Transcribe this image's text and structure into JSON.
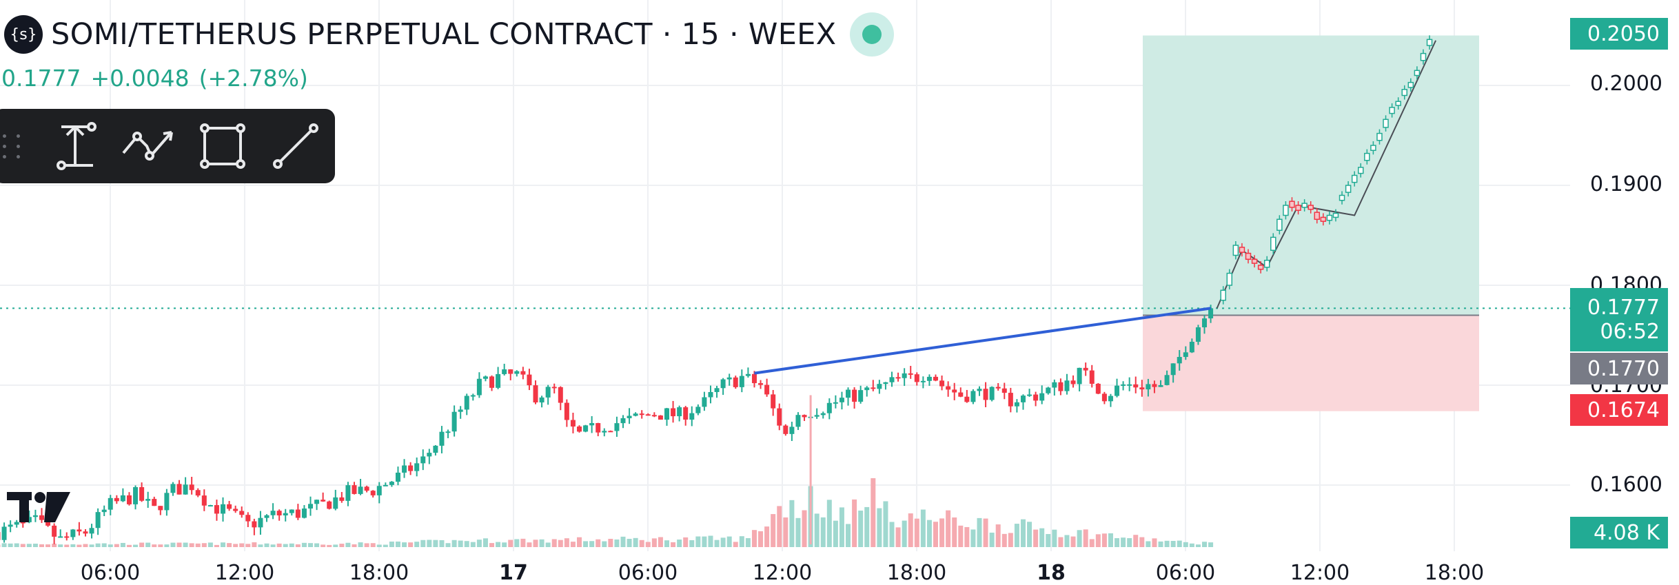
{
  "header": {
    "symbol_icon": "{s}",
    "title": "SOMI/TETHERUS PERPETUAL CONTRACT · 15 · WEEX",
    "last": "0.1777",
    "change": "+0.0048",
    "change_pct": "(+2.78%)"
  },
  "toolbar": {
    "tools": [
      "price-range-icon",
      "path-icon",
      "rectangle-icon",
      "trend-line-icon"
    ]
  },
  "price_axis": {
    "labels": [
      "0.2000",
      "0.1900",
      "0.1800",
      "0.1700",
      "0.1600"
    ],
    "bold_label": "0.2000"
  },
  "tags": {
    "target": "0.2050",
    "current_price": "0.1777",
    "countdown": "06:52",
    "entry": "0.1770",
    "stop": "0.1674",
    "volume": "4.08 K"
  },
  "time_axis": [
    "06:00",
    "12:00",
    "18:00",
    "17",
    "06:00",
    "12:00",
    "18:00",
    "18",
    "06:00",
    "12:00",
    "18:00"
  ],
  "colors": {
    "up": "#22ab94",
    "down": "#f23645",
    "trend_line": "#2f5fd6",
    "profit_zone": "#cfebe4",
    "loss_zone": "#fad7da",
    "current_tag": "#22ab94",
    "entry_tag": "#787b86",
    "stop_tag": "#f23645"
  },
  "chart_data": {
    "type": "candlestick",
    "symbol": "SOMI/TETHERUS PERPETUAL CONTRACT",
    "interval": "15",
    "exchange": "WEEX",
    "ylim": [
      0.1545,
      0.2065
    ],
    "x_ticks": [
      "06:00",
      "12:00",
      "18:00",
      "17",
      "06:00",
      "12:00",
      "18:00",
      "18",
      "06:00",
      "12:00",
      "18:00"
    ],
    "close_path": [
      [
        0,
        0.1553
      ],
      [
        6,
        0.1563
      ],
      [
        10,
        0.1545
      ],
      [
        14,
        0.1553
      ],
      [
        18,
        0.158
      ],
      [
        22,
        0.159
      ],
      [
        25,
        0.1575
      ],
      [
        28,
        0.1595
      ],
      [
        31,
        0.16
      ],
      [
        34,
        0.158
      ],
      [
        37,
        0.1572
      ],
      [
        40,
        0.156
      ],
      [
        44,
        0.157
      ],
      [
        48,
        0.1572
      ],
      [
        52,
        0.158
      ],
      [
        56,
        0.1592
      ],
      [
        60,
        0.1595
      ],
      [
        64,
        0.1608
      ],
      [
        68,
        0.1625
      ],
      [
        71,
        0.165
      ],
      [
        74,
        0.1675
      ],
      [
        77,
        0.17
      ],
      [
        80,
        0.1708
      ],
      [
        83,
        0.171
      ],
      [
        86,
        0.169
      ],
      [
        89,
        0.1695
      ],
      [
        91,
        0.166
      ],
      [
        93,
        0.165
      ],
      [
        97,
        0.166
      ],
      [
        101,
        0.1665
      ],
      [
        105,
        0.1672
      ],
      [
        109,
        0.167
      ],
      [
        113,
        0.1682
      ],
      [
        116,
        0.17
      ],
      [
        119,
        0.1708
      ],
      [
        122,
        0.17
      ],
      [
        124,
        0.1675
      ],
      [
        126,
        0.165
      ],
      [
        128,
        0.1672
      ],
      [
        132,
        0.1678
      ],
      [
        136,
        0.1688
      ],
      [
        140,
        0.1695
      ],
      [
        144,
        0.1705
      ],
      [
        147,
        0.1708
      ],
      [
        149,
        0.1715
      ],
      [
        151,
        0.17
      ],
      [
        154,
        0.169
      ],
      [
        158,
        0.1693
      ],
      [
        162,
        0.1685
      ],
      [
        166,
        0.169
      ],
      [
        170,
        0.17
      ],
      [
        173,
        0.1712
      ],
      [
        175,
        0.1705
      ],
      [
        177,
        0.169
      ],
      [
        180,
        0.17
      ],
      [
        184,
        0.17
      ],
      [
        186,
        0.1697
      ],
      [
        188,
        0.1715
      ],
      [
        190,
        0.174
      ],
      [
        192,
        0.176
      ],
      [
        194,
        0.1777
      ]
    ],
    "volume_path": [
      [
        0,
        0.45
      ],
      [
        60,
        0.5
      ],
      [
        75,
        0.9
      ],
      [
        120,
        1.2
      ],
      [
        126,
        6.0
      ],
      [
        190,
        0.6
      ],
      [
        194,
        0.6
      ]
    ],
    "volume_spikes": [
      {
        "x": 130,
        "value": 4.08
      },
      {
        "x": 140,
        "value": 20.0
      }
    ],
    "volume_label": "4.08 K",
    "trend_line": {
      "from": [
        121,
        0.1712
      ],
      "to": [
        194,
        0.1777
      ]
    },
    "long_position": {
      "entry": 0.177,
      "target": 0.205,
      "stop": 0.1674
    },
    "projection_path": [
      [
        195,
        0.1777
      ],
      [
        199,
        0.1835
      ],
      [
        203,
        0.1818
      ],
      [
        208,
        0.188
      ],
      [
        217,
        0.187
      ],
      [
        230,
        0.2045
      ]
    ],
    "projection_candles": [
      [
        196,
        0.1785,
        0.1795
      ],
      [
        197,
        0.18,
        0.1812
      ],
      [
        198,
        0.183,
        0.184
      ],
      [
        199,
        0.1838,
        0.1833
      ],
      [
        200,
        0.1832,
        0.1826
      ],
      [
        201,
        0.1826,
        0.1822
      ],
      [
        202,
        0.182,
        0.1816
      ],
      [
        203,
        0.1818,
        0.1825
      ],
      [
        204,
        0.1835,
        0.1848
      ],
      [
        205,
        0.1855,
        0.1866
      ],
      [
        206,
        0.187,
        0.188
      ],
      [
        207,
        0.1884,
        0.1878
      ],
      [
        208,
        0.188,
        0.1875
      ],
      [
        209,
        0.1878,
        0.1882
      ],
      [
        210,
        0.188,
        0.1876
      ],
      [
        211,
        0.1873,
        0.1866
      ],
      [
        212,
        0.1868,
        0.1864
      ],
      [
        213,
        0.1865,
        0.187
      ],
      [
        214,
        0.1868,
        0.1872
      ],
      [
        215,
        0.1885,
        0.189
      ],
      [
        216,
        0.1893,
        0.19
      ],
      [
        217,
        0.1903,
        0.191
      ],
      [
        218,
        0.1912,
        0.1918
      ],
      [
        219,
        0.1925,
        0.1932
      ],
      [
        220,
        0.1935,
        0.194
      ],
      [
        221,
        0.1945,
        0.1952
      ],
      [
        222,
        0.1958,
        0.1966
      ],
      [
        223,
        0.1972,
        0.1978
      ],
      [
        224,
        0.198,
        0.1984
      ],
      [
        225,
        0.199,
        0.1996
      ],
      [
        226,
        0.1998,
        0.2003
      ],
      [
        227,
        0.201,
        0.2015
      ],
      [
        228,
        0.2025,
        0.2032
      ],
      [
        229,
        0.204,
        0.2046
      ]
    ]
  }
}
